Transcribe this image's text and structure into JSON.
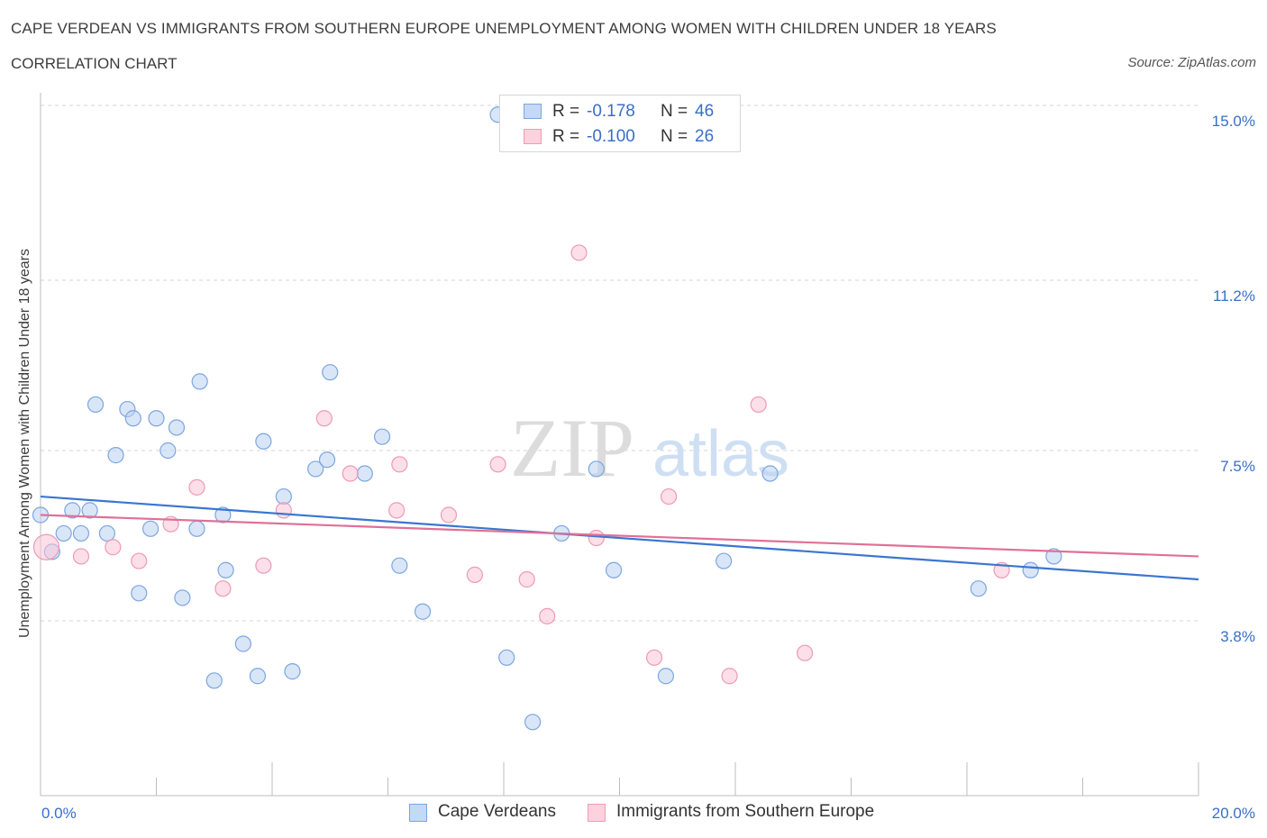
{
  "header": {
    "title": "CAPE VERDEAN VS IMMIGRANTS FROM SOUTHERN EUROPE UNEMPLOYMENT AMONG WOMEN WITH CHILDREN UNDER 18 YEARS",
    "subtitle": "CORRELATION CHART",
    "source": "Source: ZipAtlas.com"
  },
  "watermark": {
    "zip": "ZIP",
    "atlas": "atlas"
  },
  "legend": {
    "rows": [
      {
        "r_label": "R =",
        "r_value": "-0.178",
        "n_label": "N =",
        "n_value": "46"
      },
      {
        "r_label": "R =",
        "r_value": "-0.100",
        "n_label": "N =",
        "n_value": "26"
      }
    ]
  },
  "chart_data": {
    "type": "scatter",
    "title": "CAPE VERDEAN VS IMMIGRANTS FROM SOUTHERN EUROPE UNEMPLOYMENT AMONG WOMEN WITH CHILDREN UNDER 18 YEARS",
    "subtitle": "CORRELATION CHART",
    "xlabel": "",
    "ylabel": "Unemployment Among Women with Children Under 18 years",
    "xlim": [
      0,
      20
    ],
    "ylim": [
      0,
      15
    ],
    "x_tick_labels": [
      "0.0%",
      "20.0%"
    ],
    "y_ticks": [
      3.8,
      7.5,
      11.2,
      15.0
    ],
    "y_tick_labels": [
      "3.8%",
      "7.5%",
      "11.2%",
      "15.0%"
    ],
    "grid": "horizontal dashed",
    "legend_position": "top-center and bottom",
    "colors": {
      "cape_verdeans": "#a9c8f0",
      "cape_verdeans_line": "#3a76d0",
      "southern_europe": "#f5b6ca",
      "southern_europe_line": "#e07098",
      "tick_label": "#3a6ec8"
    },
    "series": [
      {
        "name": "Cape Verdeans",
        "r": -0.178,
        "n": 46,
        "trend": {
          "x": [
            0,
            20
          ],
          "y": [
            6.5,
            4.7
          ]
        },
        "points": [
          [
            0.0,
            6.1
          ],
          [
            0.2,
            5.3
          ],
          [
            0.4,
            5.7
          ],
          [
            0.55,
            6.2
          ],
          [
            0.7,
            5.7
          ],
          [
            0.85,
            6.2
          ],
          [
            0.95,
            8.5
          ],
          [
            1.15,
            5.7
          ],
          [
            1.3,
            7.4
          ],
          [
            1.5,
            8.4
          ],
          [
            1.6,
            8.2
          ],
          [
            1.7,
            4.4
          ],
          [
            1.9,
            5.8
          ],
          [
            2.0,
            8.2
          ],
          [
            2.2,
            7.5
          ],
          [
            2.35,
            8.0
          ],
          [
            2.45,
            4.3
          ],
          [
            2.7,
            5.8
          ],
          [
            2.75,
            9.0
          ],
          [
            3.0,
            2.5
          ],
          [
            3.15,
            6.1
          ],
          [
            3.2,
            4.9
          ],
          [
            3.5,
            3.3
          ],
          [
            3.75,
            2.6
          ],
          [
            3.85,
            7.7
          ],
          [
            4.2,
            6.5
          ],
          [
            4.35,
            2.7
          ],
          [
            4.75,
            7.1
          ],
          [
            4.95,
            7.3
          ],
          [
            5.0,
            9.2
          ],
          [
            5.6,
            7.0
          ],
          [
            5.9,
            7.8
          ],
          [
            6.2,
            5.0
          ],
          [
            6.6,
            4.0
          ],
          [
            7.9,
            14.8
          ],
          [
            8.05,
            3.0
          ],
          [
            8.5,
            1.6
          ],
          [
            9.0,
            5.7
          ],
          [
            9.6,
            7.1
          ],
          [
            9.9,
            4.9
          ],
          [
            10.8,
            2.6
          ],
          [
            11.8,
            5.1
          ],
          [
            12.6,
            7.0
          ],
          [
            16.2,
            4.5
          ],
          [
            17.1,
            4.9
          ],
          [
            17.5,
            5.2
          ]
        ]
      },
      {
        "name": "Immigrants from Southern Europe",
        "r": -0.1,
        "n": 26,
        "trend": {
          "x": [
            0,
            20
          ],
          "y": [
            6.1,
            5.2
          ]
        },
        "points": [
          [
            0.1,
            5.4
          ],
          [
            0.7,
            5.2
          ],
          [
            1.25,
            5.4
          ],
          [
            1.7,
            5.1
          ],
          [
            2.25,
            5.9
          ],
          [
            2.7,
            6.7
          ],
          [
            3.15,
            4.5
          ],
          [
            3.85,
            5.0
          ],
          [
            4.2,
            6.2
          ],
          [
            4.9,
            8.2
          ],
          [
            5.35,
            7.0
          ],
          [
            6.15,
            6.2
          ],
          [
            6.2,
            7.2
          ],
          [
            7.05,
            6.1
          ],
          [
            7.5,
            4.8
          ],
          [
            7.9,
            7.2
          ],
          [
            8.4,
            4.7
          ],
          [
            8.75,
            3.9
          ],
          [
            9.3,
            11.8
          ],
          [
            9.6,
            5.6
          ],
          [
            10.6,
            3.0
          ],
          [
            10.85,
            6.5
          ],
          [
            11.9,
            2.6
          ],
          [
            12.4,
            8.5
          ],
          [
            13.2,
            3.1
          ],
          [
            16.6,
            4.9
          ]
        ]
      }
    ]
  },
  "bottom_legend": {
    "items": [
      {
        "label": "Cape Verdeans"
      },
      {
        "label": "Immigrants from Southern Europe"
      }
    ]
  }
}
